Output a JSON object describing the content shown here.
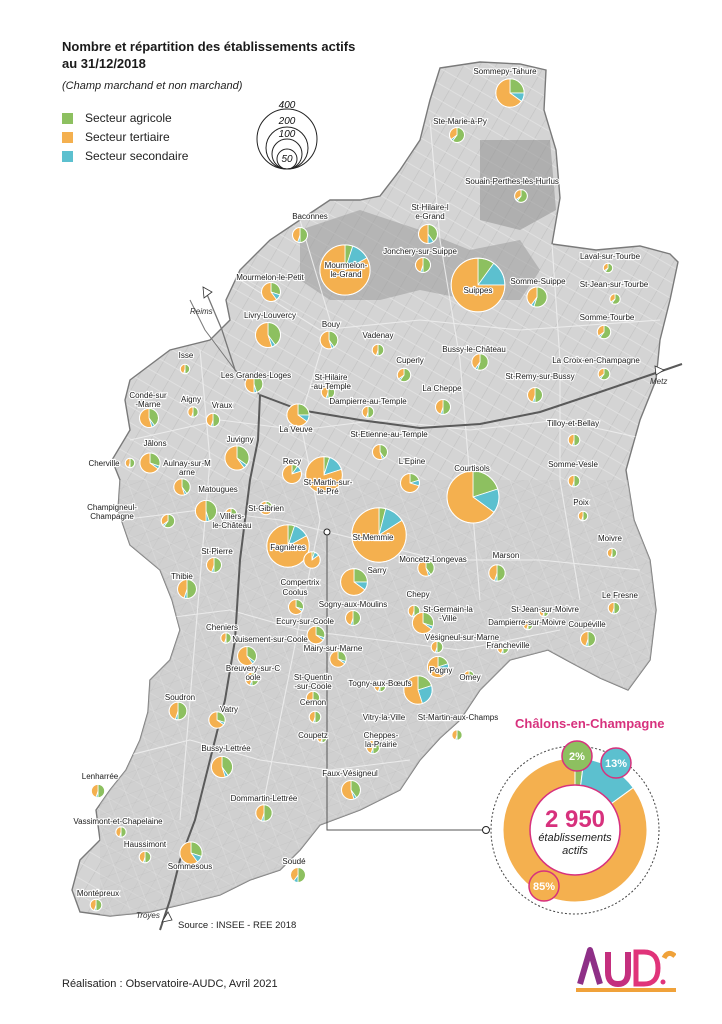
{
  "title_line1": "Nombre et répartition des établissements actifs",
  "title_line2": "au 31/12/2018",
  "subtitle": "(Champ marchand et non marchand)",
  "legend": [
    {
      "label": "Secteur agricole",
      "color": "#8dc060"
    },
    {
      "label": "Secteur tertiaire",
      "color": "#f4b04f"
    },
    {
      "label": "Secteur secondaire",
      "color": "#5cc0cf"
    }
  ],
  "size_legend": [
    "400",
    "200",
    "100",
    "50"
  ],
  "source": "Source : INSEE - REE 2018",
  "credit": "Réalisation : Observatoire-AUDC, Avril 2021",
  "logo_text": "AUD.C",
  "roads": [
    "Reims",
    "Metz",
    "Troyes"
  ],
  "inset": {
    "title": "Châlons-en-Champagne",
    "total": "2 950",
    "line1": "établissements",
    "line2": "actifs",
    "agri_pct": "2%",
    "sec_pct": "13%",
    "tert_pct": "85%"
  },
  "communes": [
    {
      "name": "Sommepy-Tahure",
      "v": 90,
      "agri": 0.25,
      "sec": 0.1
    },
    {
      "name": "Ste-Marie-à-Py",
      "v": 25,
      "agri": 0.6,
      "sec": 0.05
    },
    {
      "name": "Souain-Perthes-lès-Hurlus",
      "v": 18,
      "agri": 0.6,
      "sec": 0.05
    },
    {
      "name": "St-Hilaire-le-Grand",
      "v": 40,
      "agri": 0.4,
      "sec": 0.1
    },
    {
      "name": "Baconnes",
      "v": 25,
      "agri": 0.5,
      "sec": 0.05
    },
    {
      "name": "Jonchery-sur-Suippe",
      "v": 25,
      "agri": 0.5,
      "sec": 0.05
    },
    {
      "name": "Laval-sur-Tourbe",
      "v": 10,
      "agri": 0.6,
      "sec": 0.05
    },
    {
      "name": "Mourmelon-le-Grand",
      "v": 280,
      "agri": 0.05,
      "sec": 0.12
    },
    {
      "name": "Suippes",
      "v": 320,
      "agri": 0.1,
      "sec": 0.15
    },
    {
      "name": "Somme-Suippe",
      "v": 45,
      "agri": 0.55,
      "sec": 0.05
    },
    {
      "name": "St-Jean-sur-Tourbe",
      "v": 12,
      "agri": 0.6,
      "sec": 0.05
    },
    {
      "name": "Mourmelon-le-Petit",
      "v": 40,
      "agri": 0.3,
      "sec": 0.1
    },
    {
      "name": "Livry-Louvercy",
      "v": 70,
      "agri": 0.4,
      "sec": 0.05
    },
    {
      "name": "Bouy",
      "v": 35,
      "agri": 0.4,
      "sec": 0.05
    },
    {
      "name": "Vadenay",
      "v": 15,
      "agri": 0.5,
      "sec": 0.05
    },
    {
      "name": "Somme-Tourbe",
      "v": 20,
      "agri": 0.6,
      "sec": 0.05
    },
    {
      "name": "Cuperly",
      "v": 20,
      "agri": 0.6,
      "sec": 0.05
    },
    {
      "name": "Bussy-le-Château",
      "v": 30,
      "agri": 0.55,
      "sec": 0.05
    },
    {
      "name": "La Croix-en-Champagne",
      "v": 15,
      "agri": 0.6,
      "sec": 0.05
    },
    {
      "name": "Isse",
      "v": 10,
      "agri": 0.5,
      "sec": 0.05
    },
    {
      "name": "Les Grandes-Loges",
      "v": 35,
      "agri": 0.45,
      "sec": 0.05
    },
    {
      "name": "St-Hilaire-au-Temple",
      "v": 20,
      "agri": 0.5,
      "sec": 0.05
    },
    {
      "name": "La Cheppe",
      "v": 25,
      "agri": 0.5,
      "sec": 0.05
    },
    {
      "name": "St-Remy-sur-Bussy",
      "v": 25,
      "agri": 0.5,
      "sec": 0.05
    },
    {
      "name": "Aigny",
      "v": 12,
      "agri": 0.5,
      "sec": 0.05
    },
    {
      "name": "Condé-sur-Marne",
      "v": 40,
      "agri": 0.4,
      "sec": 0.05
    },
    {
      "name": "Vraux",
      "v": 20,
      "agri": 0.5,
      "sec": 0.05
    },
    {
      "name": "Dampierre-au-Temple",
      "v": 15,
      "agri": 0.5,
      "sec": 0.05
    },
    {
      "name": "La Veuve",
      "v": 55,
      "agri": 0.25,
      "sec": 0.1
    },
    {
      "name": "St-Etienne-au-Temple",
      "v": 25,
      "agri": 0.4,
      "sec": 0.05
    },
    {
      "name": "Tilloy-et-Bellay",
      "v": 15,
      "agri": 0.5,
      "sec": 0.05
    },
    {
      "name": "Jâlons",
      "v": 45,
      "agri": 0.3,
      "sec": 0.05
    },
    {
      "name": "Juvigny",
      "v": 65,
      "agri": 0.35,
      "sec": 0.05
    },
    {
      "name": "Cherville",
      "v": 10,
      "agri": 0.5,
      "sec": 0.05
    },
    {
      "name": "Aulnay-sur-Marne",
      "v": 30,
      "agri": 0.4,
      "sec": 0.05
    },
    {
      "name": "Recy",
      "v": 40,
      "agri": 0.1,
      "sec": 0.1
    },
    {
      "name": "L'Epine",
      "v": 40,
      "agri": 0.2,
      "sec": 0.1
    },
    {
      "name": "St-Martin-sur-le-Pré",
      "v": 150,
      "agri": 0.05,
      "sec": 0.15
    },
    {
      "name": "Courtisols",
      "v": 300,
      "agri": 0.2,
      "sec": 0.15
    },
    {
      "name": "Somme-Vesle",
      "v": 15,
      "agri": 0.5,
      "sec": 0.05
    },
    {
      "name": "Matougues",
      "v": 50,
      "agri": 0.45,
      "sec": 0.05
    },
    {
      "name": "Champigneul-Champagne",
      "v": 20,
      "agri": 0.6,
      "sec": 0.05
    },
    {
      "name": "Villers-le-Château",
      "v": 15,
      "agri": 0.5,
      "sec": 0.05
    },
    {
      "name": "St-Gibrien",
      "v": 20,
      "agri": 0.2,
      "sec": 0.15
    },
    {
      "name": "Poix",
      "v": 10,
      "agri": 0.5,
      "sec": 0.05
    },
    {
      "name": "Fagnières",
      "v": 200,
      "agri": 0.05,
      "sec": 0.12
    },
    {
      "name": "St-Memmie",
      "v": 330,
      "agri": 0.04,
      "sec": 0.12
    },
    {
      "name": "Moivre",
      "v": 10,
      "agri": 0.5,
      "sec": 0.05
    },
    {
      "name": "St-Pierre",
      "v": 25,
      "agri": 0.5,
      "sec": 0.05
    },
    {
      "name": "Compertrix",
      "v": 30,
      "agri": 0.05,
      "sec": 0.1
    },
    {
      "name": "Moncetz-Longevas",
      "v": 30,
      "agri": 0.4,
      "sec": 0.05
    },
    {
      "name": "Marson",
      "v": 30,
      "agri": 0.5,
      "sec": 0.05
    },
    {
      "name": "Thibie",
      "v": 40,
      "agri": 0.5,
      "sec": 0.05
    },
    {
      "name": "Sarry",
      "v": 80,
      "agri": 0.25,
      "sec": 0.1
    },
    {
      "name": "Coolus",
      "v": 25,
      "agri": 0.3,
      "sec": 0.05
    },
    {
      "name": "Sogny-aux-Moulins",
      "v": 25,
      "agri": 0.5,
      "sec": 0.05
    },
    {
      "name": "Chepy",
      "v": 15,
      "agri": 0.5,
      "sec": 0.05
    },
    {
      "name": "Le Fresne",
      "v": 15,
      "agri": 0.5,
      "sec": 0.05
    },
    {
      "name": "St-Germain-la-Ville",
      "v": 50,
      "agri": 0.3,
      "sec": 0.05
    },
    {
      "name": "St-Jean-sur-Moivre",
      "v": 10,
      "agri": 0.5,
      "sec": 0.05
    },
    {
      "name": "Dampierre-sur-Moivre",
      "v": 10,
      "agri": 0.5,
      "sec": 0.05
    },
    {
      "name": "Coupéville",
      "v": 25,
      "agri": 0.5,
      "sec": 0.05
    },
    {
      "name": "Ecury-sur-Coole",
      "v": 35,
      "agri": 0.3,
      "sec": 0.05
    },
    {
      "name": "Cheniers",
      "v": 12,
      "agri": 0.5,
      "sec": 0.05
    },
    {
      "name": "Nuisement-sur-Coole",
      "v": 40,
      "agri": 0.35,
      "sec": 0.05
    },
    {
      "name": "Mairy-sur-Marne",
      "v": 30,
      "agri": 0.3,
      "sec": 0.05
    },
    {
      "name": "Vésigneul-sur-Marne",
      "v": 15,
      "agri": 0.5,
      "sec": 0.05
    },
    {
      "name": "Francheville",
      "v": 15,
      "agri": 0.5,
      "sec": 0.05
    },
    {
      "name": "Breuvery-sur-Coole",
      "v": 20,
      "agri": 0.5,
      "sec": 0.05
    },
    {
      "name": "St-Quentin-sur-Coole",
      "v": 20,
      "agri": 0.5,
      "sec": 0.05
    },
    {
      "name": "Pogny",
      "v": 50,
      "agri": 0.2,
      "sec": 0.1
    },
    {
      "name": "Togny-aux-Bœufs",
      "v": 15,
      "agri": 0.5,
      "sec": 0.05
    },
    {
      "name": "Omey",
      "v": 12,
      "agri": 0.5,
      "sec": 0.05
    },
    {
      "name": "Soudron",
      "v": 35,
      "agri": 0.5,
      "sec": 0.05
    },
    {
      "name": "Cernon",
      "v": 15,
      "agri": 0.5,
      "sec": 0.05
    },
    {
      "name": "Vitry-la-Ville",
      "v": 90,
      "agri": 0.2,
      "sec": 0.25
    },
    {
      "name": "Vatry",
      "v": 30,
      "agri": 0.3,
      "sec": 0.05
    },
    {
      "name": "Coupetz",
      "v": 10,
      "agri": 0.5,
      "sec": 0.05
    },
    {
      "name": "St-Martin-aux-Champs",
      "v": 12,
      "agri": 0.5,
      "sec": 0.05
    },
    {
      "name": "Cheppes-la-Prairie",
      "v": 20,
      "agri": 0.5,
      "sec": 0.05
    },
    {
      "name": "Bussy-Lettrée",
      "v": 50,
      "agri": 0.4,
      "sec": 0.05
    },
    {
      "name": "Faux-Vésigneul",
      "v": 40,
      "agri": 0.4,
      "sec": 0.05
    },
    {
      "name": "Lenharrée",
      "v": 20,
      "agri": 0.5,
      "sec": 0.05
    },
    {
      "name": "Dommartin-Lettrée",
      "v": 30,
      "agri": 0.5,
      "sec": 0.05
    },
    {
      "name": "Vassimont-et-Chapelaine",
      "v": 12,
      "agri": 0.5,
      "sec": 0.05
    },
    {
      "name": "Haussimont",
      "v": 15,
      "agri": 0.5,
      "sec": 0.05
    },
    {
      "name": "Sommesous",
      "v": 55,
      "agri": 0.3,
      "sec": 0.1
    },
    {
      "name": "Soudé",
      "v": 25,
      "agri": 0.5,
      "sec": 0.1
    },
    {
      "name": "Montépreux",
      "v": 15,
      "agri": 0.5,
      "sec": 0.05
    }
  ]
}
